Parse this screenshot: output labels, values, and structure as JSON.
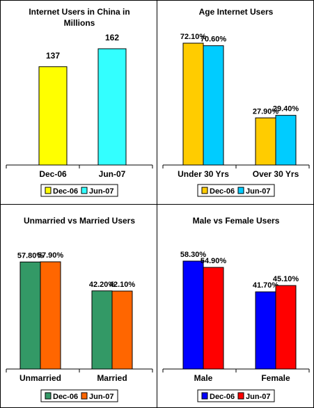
{
  "chart_data": [
    {
      "type": "bar",
      "title": "Internet Users in China in Millions",
      "title_lines": [
        "Internet Users in China in",
        "Millions"
      ],
      "categories": [
        "Dec-06",
        "Jun-07"
      ],
      "series": [
        {
          "name": "Dec-06",
          "color": "#ffff00",
          "values": [
            137,
            null
          ],
          "labels": [
            "137",
            ""
          ]
        },
        {
          "name": "Jun-07",
          "color": "#33ffff",
          "values": [
            null,
            162
          ],
          "labels": [
            "",
            "162"
          ]
        }
      ],
      "layout_mode": "single",
      "ylim": [
        0,
        162
      ],
      "legend": "bottom",
      "grid": false
    },
    {
      "type": "bar",
      "title": "Age Internet Users",
      "title_lines": [
        "Age Internet Users"
      ],
      "categories": [
        "Under 30 Yrs",
        "Over 30 Yrs"
      ],
      "series": [
        {
          "name": "Dec-06",
          "color": "#ffcc00",
          "values": [
            72.1,
            27.9
          ],
          "labels": [
            "72.10%",
            "27.90%"
          ]
        },
        {
          "name": "Jun-07",
          "color": "#00ccff",
          "values": [
            70.6,
            29.4
          ],
          "labels": [
            "70.60%",
            "29.40%"
          ]
        }
      ],
      "ylim": [
        0,
        72.1
      ],
      "legend": "bottom",
      "grid": false
    },
    {
      "type": "bar",
      "title": "Unmarried vs Married Users",
      "title_lines": [
        "Unmarried vs Married Users"
      ],
      "categories": [
        "Unmarried",
        "Married"
      ],
      "series": [
        {
          "name": "Dec-06",
          "color": "#339966",
          "values": [
            57.8,
            42.2
          ],
          "labels": [
            "57.80%",
            "42.20%"
          ]
        },
        {
          "name": "Jun-07",
          "color": "#ff6600",
          "values": [
            57.9,
            42.1
          ],
          "labels": [
            "57.90%",
            "42.10%"
          ]
        }
      ],
      "ylim": [
        0,
        57.9
      ],
      "legend": "bottom",
      "grid": false
    },
    {
      "type": "bar",
      "title": "Male vs Female Users",
      "title_lines": [
        "Male vs Female Users"
      ],
      "categories": [
        "Male",
        "Female"
      ],
      "series": [
        {
          "name": "Dec-06",
          "color": "#0000ff",
          "values": [
            58.3,
            41.7
          ],
          "labels": [
            "58.30%",
            "41.70%"
          ]
        },
        {
          "name": "Jun-07",
          "color": "#ff0000",
          "values": [
            54.9,
            45.1
          ],
          "labels": [
            "54.90%",
            "45.10%"
          ]
        }
      ],
      "ylim": [
        0,
        58.3
      ],
      "legend": "bottom",
      "grid": false
    }
  ]
}
